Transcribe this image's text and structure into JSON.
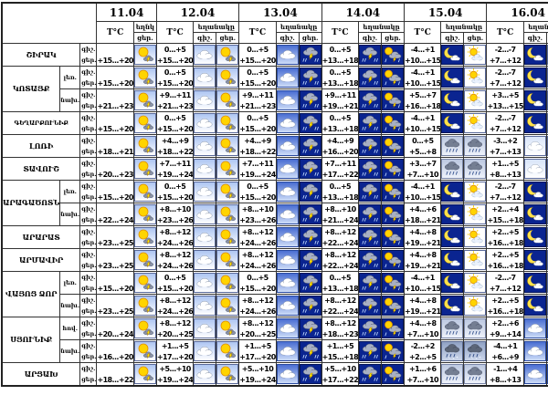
{
  "header": {
    "dates": [
      "11.04",
      "12.04",
      "13.04",
      "14.04",
      "15.04",
      "16.04"
    ],
    "temp_label": "T°C",
    "weather_label": "եղանակը",
    "weather_label_short": "եղնկ",
    "night_label": "գիշ.",
    "day_label": "ցեր."
  },
  "icon_legend": {
    "sun_storm": "sun-with-storm-cloud-day-icon",
    "cloud_light": "cloudy-light-icon",
    "cloud_blue": "cloudy-blue-icon",
    "storm_dark": "thunderstorm-rain-icon",
    "sun_storm_dark": "sun-storm-cloud-dark-icon",
    "moon_cloud": "moon-with-cloud-icon",
    "sun_cloud": "sun-behind-cloud-icon",
    "rain_grey": "rain-cloud-icon",
    "rain_dark": "sleet-rain-cloud-icon",
    "cloud_pale": "cloudy-pale-icon"
  },
  "rows": [
    {
      "region": "ՇԻՐԱԿ",
      "rowspan": 1,
      "zone": "",
      "cells": [
        {
          "day": "+15...+20",
          "icons": [
            "sun_storm"
          ]
        },
        {
          "night": "0...+5",
          "day": "+15...+20",
          "icons": [
            "cloud_light",
            "sun_storm"
          ]
        },
        {
          "night": "0...+5",
          "day": "+15...+20",
          "icons": [
            "cloud_blue",
            "storm_dark"
          ]
        },
        {
          "night": "0...+5",
          "day": "+13...+18",
          "icons": [
            "storm_dark",
            "sun_storm_dark"
          ]
        },
        {
          "night": "-4...+1",
          "day": "+10...+15",
          "icons": [
            "moon_cloud",
            "sun_cloud"
          ]
        },
        {
          "night": "-2...-7",
          "day": "+7...+12",
          "icons": [
            "moon_cloud",
            "sun_cloud"
          ]
        }
      ]
    },
    {
      "region": "ԿՈՏԱՅՔ",
      "rowspan": 2,
      "zone": "լեռ.",
      "cells": [
        {
          "day": "+15...+20",
          "icons": [
            "sun_storm"
          ]
        },
        {
          "night": "0...+5",
          "day": "+15...+20",
          "icons": [
            "cloud_light",
            "sun_storm"
          ]
        },
        {
          "night": "0...+5",
          "day": "+15...+20",
          "icons": [
            "cloud_blue",
            "storm_dark"
          ]
        },
        {
          "night": "0...+5",
          "day": "+13...+18",
          "icons": [
            "storm_dark",
            "sun_storm_dark"
          ]
        },
        {
          "night": "-4...+1",
          "day": "+10...+15",
          "icons": [
            "moon_cloud",
            "sun_cloud"
          ]
        },
        {
          "night": "-2...-7",
          "day": "+7...+12",
          "icons": [
            "moon_cloud",
            "sun_cloud"
          ]
        }
      ]
    },
    {
      "region": "",
      "rowspan": 0,
      "zone": "նախ.",
      "cells": [
        {
          "day": "+21...+23",
          "icons": [
            "sun_storm"
          ]
        },
        {
          "night": "+9...+11",
          "day": "+21...+23",
          "icons": [
            "cloud_light",
            "sun_storm"
          ]
        },
        {
          "night": "+9...+11",
          "day": "+21...+23",
          "icons": [
            "cloud_blue",
            "storm_dark"
          ]
        },
        {
          "night": "+9...+11",
          "day": "+19...+21",
          "icons": [
            "storm_dark",
            "sun_storm_dark"
          ]
        },
        {
          "night": "+5...+7",
          "day": "+16...+18",
          "icons": [
            "moon_cloud",
            "sun_cloud"
          ]
        },
        {
          "night": "+3...+5",
          "day": "+13...+15",
          "icons": [
            "moon_cloud",
            "sun_cloud"
          ]
        }
      ]
    },
    {
      "region": "ԳԵՂԱՐՔՈՒՆԻՔ",
      "rowspan": 1,
      "zone": "",
      "cells": [
        {
          "day": "+15...+20",
          "icons": [
            "sun_storm"
          ]
        },
        {
          "night": "0...+5",
          "day": "+15...+20",
          "icons": [
            "cloud_light",
            "sun_storm"
          ]
        },
        {
          "night": "0...+5",
          "day": "+15...+20",
          "icons": [
            "cloud_blue",
            "storm_dark"
          ]
        },
        {
          "night": "0...+5",
          "day": "+13...+18",
          "icons": [
            "storm_dark",
            "sun_storm_dark"
          ]
        },
        {
          "night": "-4...+1",
          "day": "+10...+15",
          "icons": [
            "moon_cloud",
            "sun_cloud"
          ]
        },
        {
          "night": "-2...-7",
          "day": "+7...+12",
          "icons": [
            "moon_cloud",
            "sun_cloud"
          ]
        }
      ]
    },
    {
      "region": "ԼՈՌԻ",
      "rowspan": 1,
      "zone": "",
      "cells": [
        {
          "day": "+18...+21",
          "icons": [
            "sun_storm"
          ]
        },
        {
          "night": "+4...+9",
          "day": "+18...+22",
          "icons": [
            "cloud_light",
            "sun_storm"
          ]
        },
        {
          "night": "+4...+9",
          "day": "+18...+22",
          "icons": [
            "cloud_blue",
            "storm_dark"
          ]
        },
        {
          "night": "+4...+9",
          "day": "+16...+20",
          "icons": [
            "storm_dark",
            "sun_storm_dark"
          ]
        },
        {
          "night": "0...+5",
          "day": "+5...+8",
          "icons": [
            "rain_grey",
            "rain_grey"
          ]
        },
        {
          "night": "-3...+2",
          "day": "+7...+13",
          "icons": [
            "cloud_pale",
            "cloud_pale"
          ]
        }
      ]
    },
    {
      "region": "ՏԱՎՈՒՇ",
      "rowspan": 1,
      "zone": "",
      "cells": [
        {
          "day": "+20...+23",
          "icons": [
            "sun_storm"
          ]
        },
        {
          "night": "+7...+11",
          "day": "+19...+24",
          "icons": [
            "cloud_light",
            "sun_storm"
          ]
        },
        {
          "night": "+7...+11",
          "day": "+19...+24",
          "icons": [
            "cloud_blue",
            "storm_dark"
          ]
        },
        {
          "night": "+7...+11",
          "day": "+17...+22",
          "icons": [
            "storm_dark",
            "sun_storm_dark"
          ]
        },
        {
          "night": "+3...+7",
          "day": "+7...+10",
          "icons": [
            "rain_grey",
            "rain_grey"
          ]
        },
        {
          "night": "+1...+5",
          "day": "+8...+13",
          "icons": [
            "cloud_pale",
            "cloud_pale"
          ]
        }
      ]
    },
    {
      "region": "ԱՐԱԳԱԾՈՏՆ",
      "rowspan": 2,
      "zone": "լեռ.",
      "cells": [
        {
          "day": "+15...+20",
          "icons": [
            "sun_storm"
          ]
        },
        {
          "night": "0...+5",
          "day": "+15...+20",
          "icons": [
            "cloud_light",
            "sun_storm"
          ]
        },
        {
          "night": "0...+5",
          "day": "+15...+20",
          "icons": [
            "cloud_blue",
            "storm_dark"
          ]
        },
        {
          "night": "0...+5",
          "day": "+13...+18",
          "icons": [
            "storm_dark",
            "sun_storm_dark"
          ]
        },
        {
          "night": "-4...+1",
          "day": "+10...+15",
          "icons": [
            "moon_cloud",
            "sun_cloud"
          ]
        },
        {
          "night": "-2...-7",
          "day": "+7...+12",
          "icons": [
            "moon_cloud",
            "sun_cloud"
          ]
        }
      ]
    },
    {
      "region": "",
      "rowspan": 0,
      "zone": "նախ.",
      "cells": [
        {
          "day": "+22...+24",
          "icons": [
            "sun_storm"
          ]
        },
        {
          "night": "+8...+10",
          "day": "+23...+26",
          "icons": [
            "cloud_light",
            "sun_storm"
          ]
        },
        {
          "night": "+8...+10",
          "day": "+23...+26",
          "icons": [
            "cloud_blue",
            "storm_dark"
          ]
        },
        {
          "night": "+8...+10",
          "day": "+21...+24",
          "icons": [
            "storm_dark",
            "sun_storm_dark"
          ]
        },
        {
          "night": "+4...+6",
          "day": "+18...+21",
          "icons": [
            "moon_cloud",
            "sun_cloud"
          ]
        },
        {
          "night": "+2...+4",
          "day": "+15...+18",
          "icons": [
            "moon_cloud",
            "sun_cloud"
          ]
        }
      ]
    },
    {
      "region": "ԱՐԱՐԱՏ",
      "rowspan": 1,
      "zone": "",
      "cells": [
        {
          "day": "+23...+25",
          "icons": [
            "sun_storm"
          ]
        },
        {
          "night": "+8...+12",
          "day": "+24...+26",
          "icons": [
            "cloud_light",
            "sun_storm"
          ]
        },
        {
          "night": "+8...+12",
          "day": "+24...+26",
          "icons": [
            "cloud_blue",
            "storm_dark"
          ]
        },
        {
          "night": "+8...+12",
          "day": "+22...+24",
          "icons": [
            "storm_dark",
            "sun_storm_dark"
          ]
        },
        {
          "night": "+4...+8",
          "day": "+19...+21",
          "icons": [
            "moon_cloud",
            "sun_cloud"
          ]
        },
        {
          "night": "+2...+5",
          "day": "+16...+18",
          "icons": [
            "moon_cloud",
            "sun_cloud"
          ]
        }
      ]
    },
    {
      "region": "ԱՐՄԱՎԻՐ",
      "rowspan": 1,
      "zone": "",
      "cells": [
        {
          "day": "+23...+25",
          "icons": [
            "sun_storm"
          ]
        },
        {
          "night": "+8...+12",
          "day": "+24...+26",
          "icons": [
            "cloud_light",
            "sun_storm"
          ]
        },
        {
          "night": "+8...+12",
          "day": "+24...+26",
          "icons": [
            "cloud_blue",
            "storm_dark"
          ]
        },
        {
          "night": "+8...+12",
          "day": "+22...+24",
          "icons": [
            "storm_dark",
            "sun_storm_dark"
          ]
        },
        {
          "night": "+4...+8",
          "day": "+19...+21",
          "icons": [
            "moon_cloud",
            "sun_cloud"
          ]
        },
        {
          "night": "+2...+5",
          "day": "+16...+18",
          "icons": [
            "moon_cloud",
            "sun_cloud"
          ]
        }
      ]
    },
    {
      "region": "ՎԱՅՈՑ ՁՈՐ",
      "rowspan": 2,
      "zone": "լեռ.",
      "cells": [
        {
          "day": "+15...+20",
          "icons": [
            "sun_storm"
          ]
        },
        {
          "night": "0...+5",
          "day": "+15...+20",
          "icons": [
            "cloud_light",
            "sun_storm"
          ]
        },
        {
          "night": "0...+5",
          "day": "+15...+20",
          "icons": [
            "cloud_blue",
            "storm_dark"
          ]
        },
        {
          "night": "0...+5",
          "day": "+13...+18",
          "icons": [
            "storm_dark",
            "sun_storm_dark"
          ]
        },
        {
          "night": "-4...+1",
          "day": "+10...+15",
          "icons": [
            "moon_cloud",
            "sun_cloud"
          ]
        },
        {
          "night": "-2...-7",
          "day": "+7...+12",
          "icons": [
            "moon_cloud",
            "sun_cloud"
          ]
        }
      ]
    },
    {
      "region": "",
      "rowspan": 0,
      "zone": "նախ.",
      "cells": [
        {
          "day": "+23...+25",
          "icons": [
            "sun_storm"
          ]
        },
        {
          "night": "+8...+12",
          "day": "+24...+26",
          "icons": [
            "cloud_light",
            "sun_storm"
          ]
        },
        {
          "night": "+8...+12",
          "day": "+24...+26",
          "icons": [
            "cloud_blue",
            "storm_dark"
          ]
        },
        {
          "night": "+8...+12",
          "day": "+22...+24",
          "icons": [
            "storm_dark",
            "sun_storm_dark"
          ]
        },
        {
          "night": "+4...+8",
          "day": "+19...+21",
          "icons": [
            "moon_cloud",
            "sun_cloud"
          ]
        },
        {
          "night": "+2...+5",
          "day": "+16...+18",
          "icons": [
            "moon_cloud",
            "sun_cloud"
          ]
        }
      ]
    },
    {
      "region": "ՍՅՈՒՆԻՔ",
      "rowspan": 2,
      "zone": "հով.",
      "cells": [
        {
          "day": "+20...+24",
          "icons": [
            "sun_storm"
          ]
        },
        {
          "night": "+8...+12",
          "day": "+20...+25",
          "icons": [
            "cloud_light",
            "sun_storm"
          ]
        },
        {
          "night": "+8...+12",
          "day": "+20...+25",
          "icons": [
            "cloud_blue",
            "storm_dark"
          ]
        },
        {
          "night": "+8...+12",
          "day": "+18...+23",
          "icons": [
            "storm_dark",
            "sun_storm_dark"
          ]
        },
        {
          "night": "+4...+8",
          "day": "+7...+10",
          "icons": [
            "rain_grey",
            "rain_grey"
          ]
        },
        {
          "night": "+2...+6",
          "day": "+9...+14",
          "icons": [
            "cloud_blue",
            "cloud_blue"
          ]
        }
      ]
    },
    {
      "region": "",
      "rowspan": 0,
      "zone": "նախ.",
      "cells": [
        {
          "day": "+16...+20",
          "icons": [
            "sun_storm"
          ]
        },
        {
          "night": "+1...+5",
          "day": "+17...+20",
          "icons": [
            "cloud_light",
            "sun_storm"
          ]
        },
        {
          "night": "+1...+5",
          "day": "+17...+20",
          "icons": [
            "cloud_blue",
            "storm_dark"
          ]
        },
        {
          "night": "+1...+5",
          "day": "+15...+18",
          "icons": [
            "storm_dark",
            "sun_storm_dark"
          ]
        },
        {
          "night": "-2...+2",
          "day": "+2...+5",
          "icons": [
            "rain_dark",
            "rain_dark"
          ]
        },
        {
          "night": "-4...+1",
          "day": "+6...+9",
          "icons": [
            "cloud_blue",
            "cloud_blue"
          ]
        }
      ]
    },
    {
      "region": "ԱՐՑԱԽ",
      "rowspan": 1,
      "zone": "",
      "cells": [
        {
          "day": "+18...+22",
          "icons": [
            "sun_storm"
          ]
        },
        {
          "night": "+5...+10",
          "day": "+19...+24",
          "icons": [
            "cloud_light",
            "sun_storm"
          ]
        },
        {
          "night": "+5...+10",
          "day": "+19...+24",
          "icons": [
            "cloud_blue",
            "storm_dark"
          ]
        },
        {
          "night": "+5...+10",
          "day": "+17...+22",
          "icons": [
            "storm_dark",
            "sun_storm_dark"
          ]
        },
        {
          "night": "+1...+6",
          "day": "+7...+10",
          "icons": [
            "rain_grey",
            "rain_grey"
          ]
        },
        {
          "night": "-1...+4",
          "day": "+8...+13",
          "icons": [
            "cloud_blue",
            "cloud_blue"
          ]
        }
      ]
    }
  ]
}
